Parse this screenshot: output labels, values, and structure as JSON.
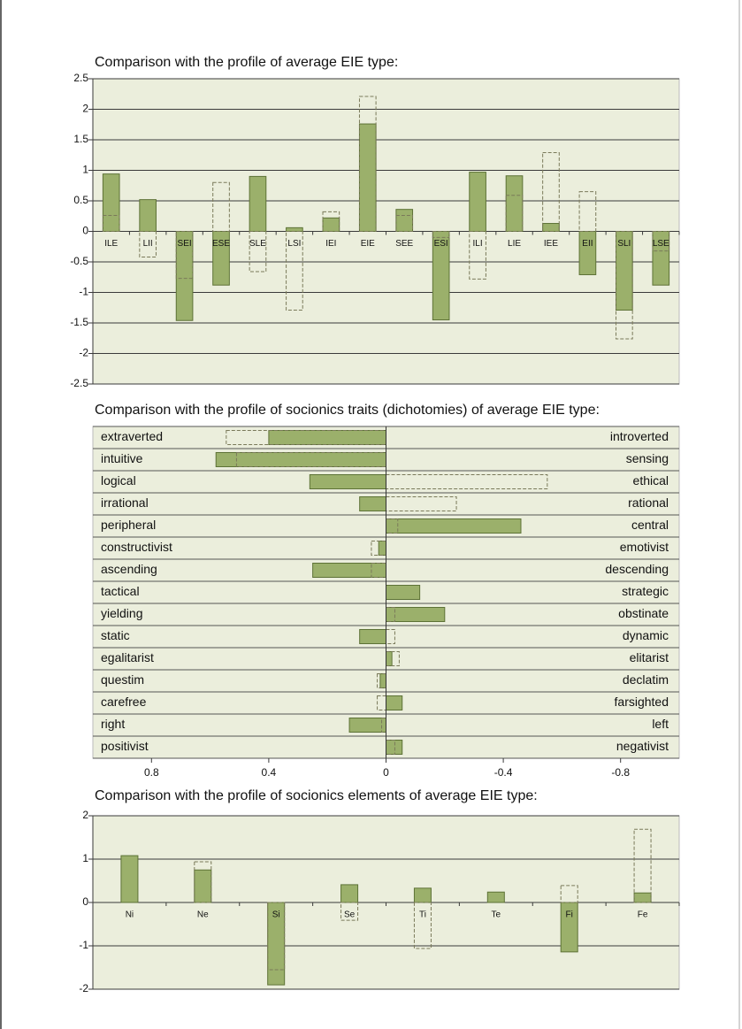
{
  "chart_data": [
    {
      "type": "bar",
      "title": "Comparison with the profile of average EIE type:",
      "categories": [
        "ILE",
        "LII",
        "SEI",
        "ESE",
        "SLE",
        "LSI",
        "IEI",
        "EIE",
        "SEE",
        "ESI",
        "ILI",
        "LIE",
        "IEE",
        "EII",
        "SLI",
        "LSE"
      ],
      "series": [
        {
          "color": "#9bb06b",
          "style": "solid",
          "values": [
            0.94,
            0.52,
            -1.46,
            -0.88,
            0.9,
            0.06,
            0.22,
            1.76,
            0.36,
            -1.45,
            0.97,
            0.91,
            0.13,
            -0.71,
            -1.29,
            -0.88
          ]
        },
        {
          "color": "#7a7a5a",
          "style": "dashed",
          "values": [
            0.26,
            -0.42,
            -0.77,
            0.8,
            -0.66,
            -1.29,
            0.32,
            2.21,
            0.26,
            -0.1,
            -0.78,
            0.59,
            1.29,
            0.65,
            -1.76,
            -0.32
          ]
        }
      ],
      "ylim": [
        -2.5,
        2.5
      ],
      "yticks": [
        -2.5,
        -2,
        -1.5,
        -1,
        -0.5,
        0,
        0.5,
        1,
        1.5,
        2,
        2.5
      ],
      "grid": true
    },
    {
      "type": "barh",
      "title": "Comparison with the profile of socionics traits (dichotomies) of average EIE type:",
      "categories": [
        "extraverted",
        "intuitive",
        "logical",
        "irrational",
        "peripheral",
        "constructivist",
        "ascending",
        "tactical",
        "yielding",
        "static",
        "egalitarist",
        "questim",
        "carefree",
        "right",
        "positivist"
      ],
      "right_categories": [
        "introverted",
        "sensing",
        "ethical",
        "rational",
        "central",
        "emotivist",
        "descending",
        "strategic",
        "obstinate",
        "dynamic",
        "elitarist",
        "declatim",
        "farsighted",
        "left",
        "negativist"
      ],
      "series": [
        {
          "color": "#9bb06b",
          "style": "solid",
          "values": [
            0.4,
            0.58,
            0.26,
            0.09,
            -0.46,
            0.025,
            0.25,
            -0.115,
            -0.2,
            0.09,
            -0.02,
            0.02,
            -0.055,
            0.125,
            -0.055
          ]
        },
        {
          "color": "#7a7a5a",
          "style": "dashed",
          "values": [
            0.545,
            0.51,
            -0.55,
            -0.24,
            -0.04,
            0.05,
            0.05,
            0,
            -0.03,
            -0.03,
            -0.045,
            0.03,
            0.03,
            0.015,
            -0.03
          ]
        }
      ],
      "xlim": [
        1,
        -1
      ],
      "xticks": [
        0.8,
        0.4,
        0,
        -0.4,
        -0.8
      ],
      "grid": true
    },
    {
      "type": "bar",
      "title": "Comparison with the profile of socionics elements of average EIE type:",
      "categories": [
        "Ni",
        "Ne",
        "Si",
        "Se",
        "Ti",
        "Te",
        "Fi",
        "Fe"
      ],
      "series": [
        {
          "color": "#9bb06b",
          "style": "solid",
          "values": [
            1.08,
            0.75,
            -1.9,
            0.41,
            0.33,
            0.24,
            -1.14,
            0.22
          ]
        },
        {
          "color": "#7a7a5a",
          "style": "dashed",
          "values": [
            0,
            0.94,
            -1.55,
            -0.41,
            -1.06,
            0,
            0.39,
            1.69
          ]
        }
      ],
      "ylim": [
        -2,
        2
      ],
      "yticks": [
        -2,
        -1,
        0,
        1,
        2
      ],
      "grid": true
    }
  ]
}
